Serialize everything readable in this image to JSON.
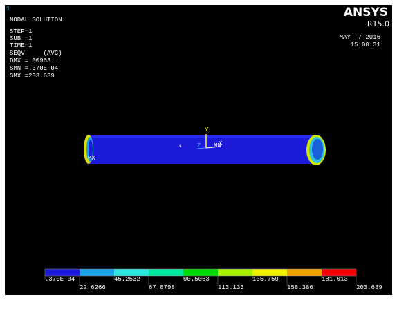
{
  "window_number": "1",
  "header": {
    "title": "NODAL SOLUTION",
    "lines": [
      "STEP=1",
      "SUB =1",
      "TIME=1",
      "SEQV     (AVG)",
      "DMX =.00963",
      "SMN =.370E-04",
      "SMX =203.639"
    ]
  },
  "logo": {
    "name": "ANSYS",
    "release": "R15.0",
    "date": "MAY  7 2016",
    "time": "15:00:31"
  },
  "model": {
    "max_label": "MX",
    "min_label": "MN",
    "triad": {
      "x": "X",
      "y": "Y",
      "z": "Z"
    }
  },
  "legend": {
    "labels": [
      ".370E-04",
      "22.6266",
      "45.2532",
      "67.8798",
      "90.5063",
      "113.133",
      "135.759",
      "158.386",
      "181.013",
      "203.639"
    ],
    "colors": [
      "#1a1ad8",
      "#18a0e8",
      "#30e6e0",
      "#00e8a0",
      "#00d800",
      "#a8f000",
      "#f0f000",
      "#f0a000",
      "#f00000"
    ]
  }
}
